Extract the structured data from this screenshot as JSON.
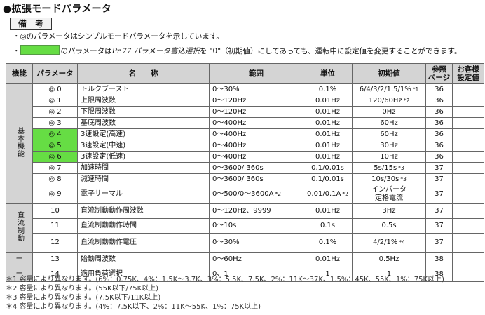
{
  "page": {
    "title": "●拡張モードパラメータ"
  },
  "notes": {
    "heading": "備　考",
    "line1": "・◎のパラメータはシンプルモードパラメータを示しています。",
    "line2_bullet": "・",
    "line2_a": "のパラメータは",
    "line2_b": "Pr.77 パラメータ書込選択",
    "line2_c": "を \"0\"（初期値）にしてあっても、運転中に設定値を変更することができます。"
  },
  "table": {
    "headers": {
      "func": "機能",
      "param": "パラメータ",
      "name": "名　　称",
      "range": "範囲",
      "unit": "単位",
      "init": "初期値",
      "ref": "参照\nページ",
      "cust": "お客様\n設定値"
    },
    "groups": {
      "basic": "基本機能",
      "dc": "直流制動",
      "dash1": "ー",
      "dash2": "ー"
    },
    "rows": [
      {
        "param": "◎ 0",
        "name": "トルクブースト",
        "range": "0～30%",
        "unit": "0.1%",
        "init": "6/4/3/2/1.5/1%",
        "mark": "*1",
        "ref": "36"
      },
      {
        "param": "◎ 1",
        "name": "上限周波数",
        "range": "0～120Hz",
        "unit": "0.01Hz",
        "init": "120/60Hz",
        "mark": "*2",
        "ref": "36"
      },
      {
        "param": "◎ 2",
        "name": "下限周波数",
        "range": "0～120Hz",
        "unit": "0.01Hz",
        "init": "0Hz",
        "ref": "36"
      },
      {
        "param": "◎ 3",
        "name": "基底周波数",
        "range": "0～400Hz",
        "unit": "0.01Hz",
        "init": "60Hz",
        "ref": "36"
      },
      {
        "param": "◎ 4",
        "name": "3速設定(高速)",
        "range": "0～400Hz",
        "unit": "0.01Hz",
        "init": "60Hz",
        "ref": "36"
      },
      {
        "param": "◎ 5",
        "name": "3速設定(中速)",
        "range": "0～400Hz",
        "unit": "0.01Hz",
        "init": "30Hz",
        "ref": "36"
      },
      {
        "param": "◎ 6",
        "name": "3速設定(低速)",
        "range": "0～400Hz",
        "unit": "0.01Hz",
        "init": "10Hz",
        "ref": "36"
      },
      {
        "param": "◎ 7",
        "name": "加速時間",
        "range": "0～3600/ 360s",
        "unit": "0.1/0.01s",
        "init": "5s/15s",
        "mark": "*3",
        "ref": "37"
      },
      {
        "param": "◎ 8",
        "name": "減速時間",
        "range": "0～3600/ 360s",
        "unit": "0.1/0.01s",
        "init": "10s/30s",
        "mark": "*3",
        "ref": "37"
      },
      {
        "param": "◎ 9",
        "name": "電子サーマル",
        "range": "0～500/0～3600A",
        "range_mark": "*2",
        "unit": "0.01/0.1A",
        "unit_mark": "*2",
        "init": "インバータ",
        "init2": "定格電流",
        "ref": "37"
      },
      {
        "param": "10",
        "name": "直流制動動作周波数",
        "range": "0～120Hz、9999",
        "unit": "0.01Hz",
        "init": "3Hz",
        "ref": "37"
      },
      {
        "param": "11",
        "name": "直流制動動作時間",
        "range": "0～10s",
        "unit": "0.1s",
        "init": "0.5s",
        "ref": "37"
      },
      {
        "param": "12",
        "name": "直流制動動作電圧",
        "range": "0～30%",
        "unit": "0.1%",
        "init": "4/2/1%",
        "mark": "*4",
        "ref": "37"
      },
      {
        "param": "13",
        "name": "始動周波数",
        "range": "0～60Hz",
        "unit": "0.01Hz",
        "init": "0.5Hz",
        "ref": "38"
      },
      {
        "param": "14",
        "name": "適用負荷選択",
        "range": "0、1",
        "unit": "1",
        "init": "1",
        "ref": "38"
      }
    ]
  },
  "footnotes": [
    "＊1 容量により異なります。(6%：0.75K、4%：1.5K～3.7K、3%：5.5K、7.5K、2%：11K～37K、1.5%：45K、55K、1%：75K以上)",
    "＊2 容量により異なります。(55K以下/75K以上)",
    "＊3 容量により異なります。(7.5K以下/11K以上)",
    "＊4 容量により異なります。(4%：7.5K以下、2%：11K～55K、1%：75K以上)"
  ],
  "colors": {
    "highlight_green": "#66dd44",
    "header_gray": "#d4d4d4"
  }
}
